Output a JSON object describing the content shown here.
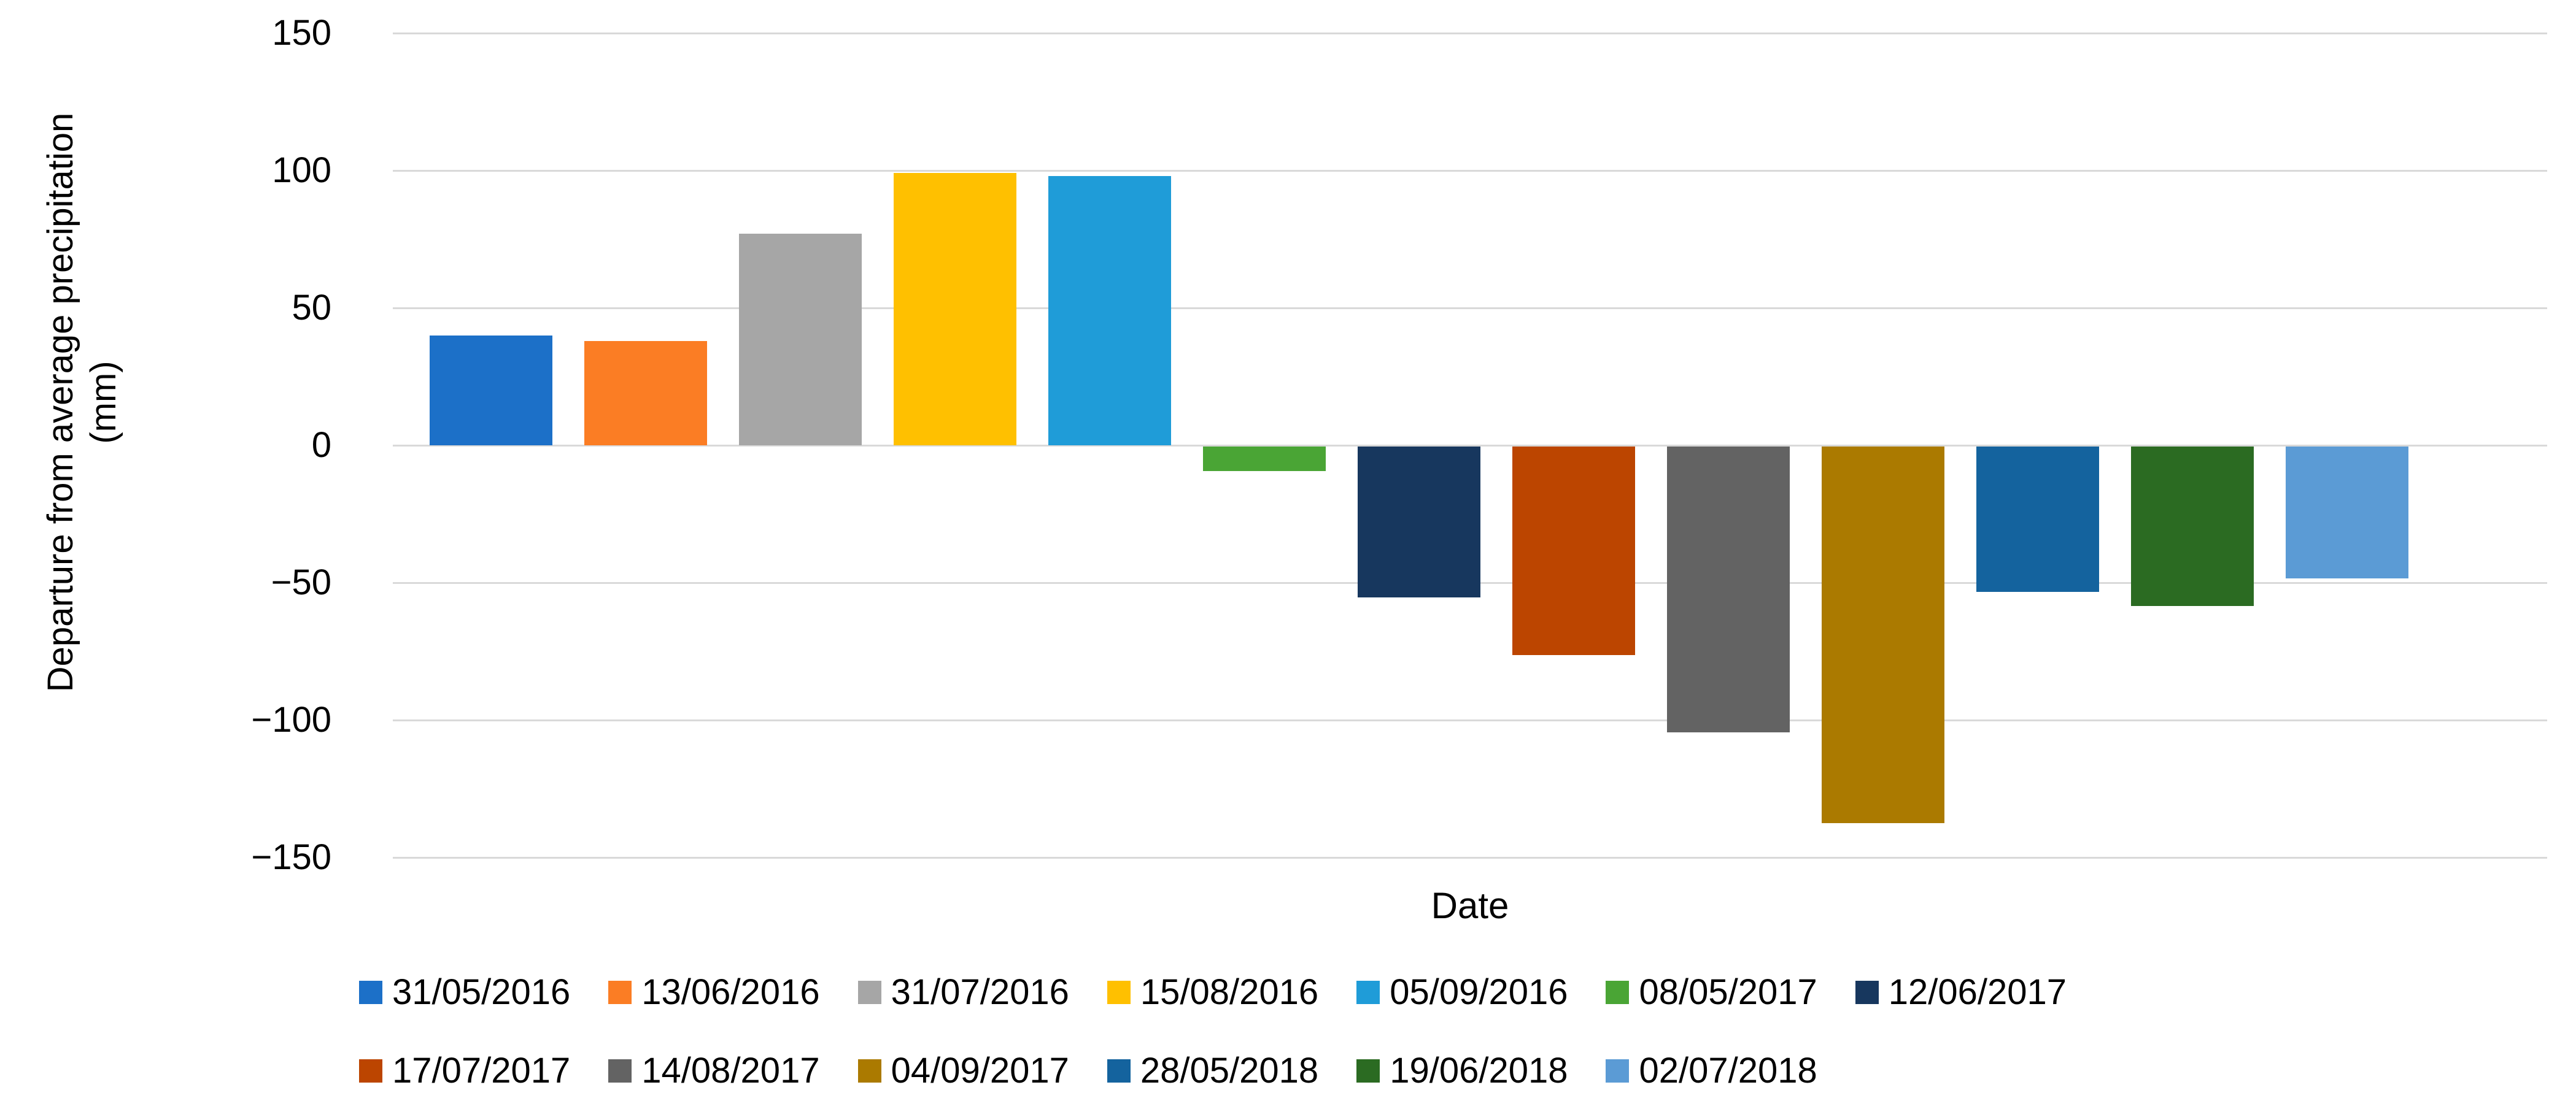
{
  "chart_data": {
    "type": "bar",
    "title": "",
    "xlabel": "Date",
    "ylabel_line1": "Departure from average precipitation",
    "ylabel_line2": "(mm)",
    "ylim": [
      -150,
      150
    ],
    "ytick_step": 50,
    "yticks": [
      {
        "value": 150,
        "label": "150"
      },
      {
        "value": 100,
        "label": "100"
      },
      {
        "value": 50,
        "label": "50"
      },
      {
        "value": 0,
        "label": "0"
      },
      {
        "value": -50,
        "label": "−50"
      },
      {
        "value": -100,
        "label": "−100"
      },
      {
        "value": -150,
        "label": "−150"
      }
    ],
    "grid": true,
    "gridline_color": "#d9d9d9",
    "legend_position": "bottom",
    "legend_rows": [
      7,
      6
    ],
    "categories": [
      "31/05/2016",
      "13/06/2016",
      "31/07/2016",
      "15/08/2016",
      "05/09/2016",
      "08/05/2017",
      "12/06/2017",
      "17/07/2017",
      "14/08/2017",
      "04/09/2017",
      "28/05/2018",
      "19/06/2018",
      "02/07/2018"
    ],
    "values": [
      40,
      38,
      77,
      99,
      98,
      -9,
      -55,
      -76,
      -104,
      -137,
      -53,
      -58,
      -48
    ],
    "colors": [
      "#1C70C8",
      "#FB7D24",
      "#A6A6A6",
      "#FFC000",
      "#1F9CD8",
      "#4AA535",
      "#17375E",
      "#BC4500",
      "#636363",
      "#AB7A00",
      "#14639E",
      "#2B6B22",
      "#5B9BD5"
    ]
  }
}
